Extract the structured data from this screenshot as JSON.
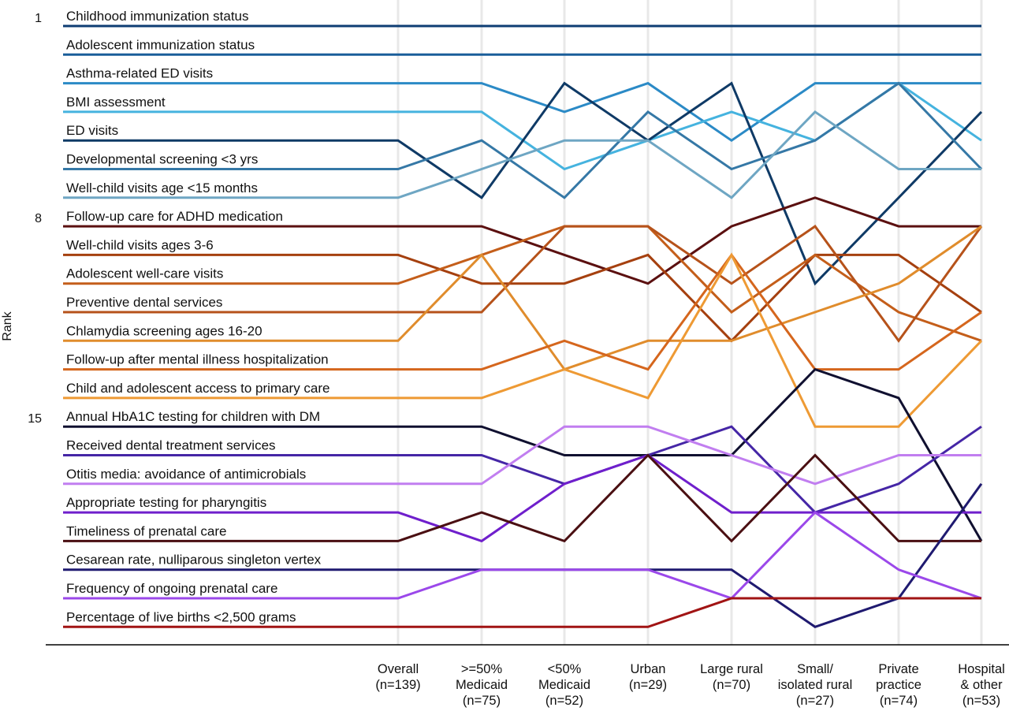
{
  "chart_data": {
    "type": "line",
    "ylabel": "Rank",
    "y_ticks": [
      "1",
      "8",
      "15"
    ],
    "y_ticks_at": [
      1,
      8,
      15
    ],
    "ylim": [
      1,
      21
    ],
    "y_reversed": true,
    "x_categories": [
      {
        "lines": [
          "Overall",
          "(n=139)"
        ]
      },
      {
        "lines": [
          ">=50%",
          "Medicaid",
          "(n=75)"
        ]
      },
      {
        "lines": [
          "<50%",
          "Medicaid",
          "(n=52)"
        ]
      },
      {
        "lines": [
          "Urban",
          "(n=29)"
        ]
      },
      {
        "lines": [
          "Large rural",
          "(n=70)"
        ]
      },
      {
        "lines": [
          "Small/",
          "isolated rural",
          "(n=27)"
        ]
      },
      {
        "lines": [
          "Private",
          "practice",
          "(n=74)"
        ]
      },
      {
        "lines": [
          "Hospital",
          "& other",
          "(n=53)"
        ]
      }
    ],
    "series": [
      {
        "name": "Childhood immunization status",
        "color": "#0d3d73",
        "values": [
          1,
          1,
          1,
          1,
          1,
          1,
          1,
          1
        ]
      },
      {
        "name": "Adolescent immunization status",
        "color": "#1a5e9a",
        "values": [
          2,
          2,
          2,
          2,
          2,
          2,
          2,
          2
        ]
      },
      {
        "name": "Asthma-related ED visits",
        "color": "#2b8ac6",
        "values": [
          3,
          3,
          4,
          3,
          5,
          3,
          3,
          3
        ]
      },
      {
        "name": "BMI assessment",
        "color": "#45b3df",
        "values": [
          4,
          4,
          6,
          5,
          4,
          5,
          3,
          5
        ]
      },
      {
        "name": "ED visits",
        "color": "#0f3a66",
        "values": [
          5,
          7,
          3,
          5,
          3,
          10,
          7,
          4
        ]
      },
      {
        "name": "Developmental screening <3 yrs",
        "color": "#3578a6",
        "values": [
          6,
          5,
          7,
          4,
          6,
          5,
          3,
          6
        ]
      },
      {
        "name": "Well-child visits age <15 months",
        "color": "#6ea6c3",
        "values": [
          7,
          6,
          5,
          5,
          7,
          4,
          6,
          6
        ]
      },
      {
        "name": "Follow-up care for ADHD medication",
        "color": "#5b1010",
        "values": [
          8,
          8,
          9,
          10,
          8,
          7,
          8,
          8
        ]
      },
      {
        "name": "Well-child visits ages 3-6",
        "color": "#a5400f",
        "values": [
          9,
          10,
          10,
          9,
          12,
          9,
          9,
          11
        ]
      },
      {
        "name": "Adolescent well-care visits",
        "color": "#c45e1a",
        "values": [
          10,
          9,
          8,
          8,
          11,
          9,
          11,
          12
        ]
      },
      {
        "name": "Preventive dental services",
        "color": "#b6521a",
        "values": [
          11,
          11,
          8,
          8,
          10,
          8,
          12,
          8
        ]
      },
      {
        "name": "Chlamydia screening ages 16-20",
        "color": "#e08c2c",
        "values": [
          12,
          9,
          13,
          12,
          12,
          11,
          10,
          8
        ]
      },
      {
        "name": "Follow-up after mental illness hospitalization",
        "color": "#d5661d",
        "values": [
          13,
          13,
          12,
          13,
          9,
          13,
          13,
          11
        ]
      },
      {
        "name": "Child and adolescent access to primary care",
        "color": "#ee9a34",
        "values": [
          14,
          14,
          13,
          14,
          9,
          15,
          15,
          12
        ]
      },
      {
        "name": "Annual HbA1C testing for children with DM",
        "color": "#101030",
        "values": [
          15,
          15,
          16,
          16,
          16,
          13,
          14,
          19
        ]
      },
      {
        "name": "Received dental treatment services",
        "color": "#4526a6",
        "values": [
          16,
          16,
          17,
          16,
          15,
          18,
          17,
          15
        ]
      },
      {
        "name": "Otitis media: avoidance of antimicrobials",
        "color": "#c17ef0",
        "values": [
          17,
          17,
          15,
          15,
          16,
          17,
          16,
          16
        ]
      },
      {
        "name": "Appropriate testing for pharyngitis",
        "color": "#6f1fcc",
        "values": [
          18,
          19,
          17,
          16,
          18,
          18,
          18,
          18
        ]
      },
      {
        "name": "Timeliness of prenatal care",
        "color": "#4a0f12",
        "values": [
          19,
          18,
          19,
          16,
          19,
          16,
          19,
          19
        ]
      },
      {
        "name": "Cesarean rate, nulliparous singleton vertex",
        "color": "#1f1a70",
        "values": [
          20,
          20,
          20,
          20,
          20,
          22,
          21,
          17
        ]
      },
      {
        "name": "Frequency of ongoing prenatal care",
        "color": "#9b48ea",
        "values": [
          21,
          20,
          20,
          20,
          21,
          18,
          20,
          21
        ]
      },
      {
        "name": "Percentage of live births <2,500 grams",
        "color": "#a11414",
        "values": [
          22,
          22,
          22,
          22,
          21,
          21,
          21,
          21
        ]
      }
    ]
  }
}
